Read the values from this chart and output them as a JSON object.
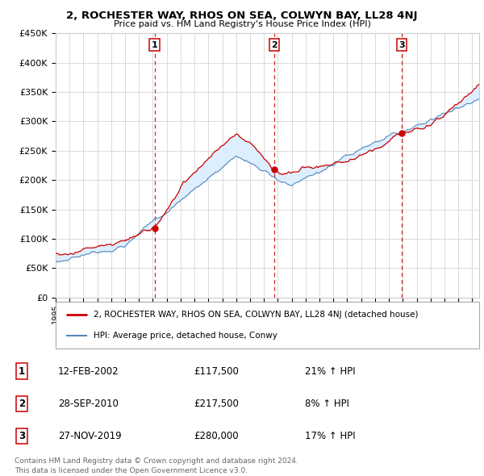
{
  "title": "2, ROCHESTER WAY, RHOS ON SEA, COLWYN BAY, LL28 4NJ",
  "subtitle": "Price paid vs. HM Land Registry's House Price Index (HPI)",
  "ylabel_ticks": [
    "£0",
    "£50K",
    "£100K",
    "£150K",
    "£200K",
    "£250K",
    "£300K",
    "£350K",
    "£400K",
    "£450K"
  ],
  "ylim": [
    0,
    450000
  ],
  "xlim_start": 1995.0,
  "xlim_end": 2025.5,
  "sale_dates": [
    2002.12,
    2010.75,
    2019.91
  ],
  "sale_prices": [
    117500,
    217500,
    280000
  ],
  "sale_labels": [
    "1",
    "2",
    "3"
  ],
  "sale_label_dates": [
    "12-FEB-2002",
    "28-SEP-2010",
    "27-NOV-2019"
  ],
  "sale_label_prices": [
    "£117,500",
    "£217,500",
    "£280,000"
  ],
  "sale_label_hpi": [
    "21% ↑ HPI",
    "8% ↑ HPI",
    "17% ↑ HPI"
  ],
  "legend_line1": "2, ROCHESTER WAY, RHOS ON SEA, COLWYN BAY, LL28 4NJ (detached house)",
  "legend_line2": "HPI: Average price, detached house, Conwy",
  "footer1": "Contains HM Land Registry data © Crown copyright and database right 2024.",
  "footer2": "This data is licensed under the Open Government Licence v3.0.",
  "red_color": "#cc0000",
  "blue_color": "#5588bb",
  "fill_color": "#ddeeff",
  "grid_color": "#cccccc",
  "bg_color": "#ffffff",
  "label_box_color": "#cc0000"
}
